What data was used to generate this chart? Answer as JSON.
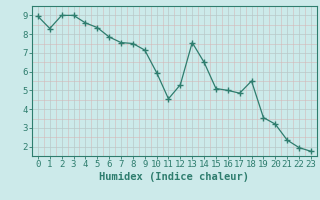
{
  "x": [
    0,
    1,
    2,
    3,
    4,
    5,
    6,
    7,
    8,
    9,
    10,
    11,
    12,
    13,
    14,
    15,
    16,
    17,
    18,
    19,
    20,
    21,
    22,
    23
  ],
  "y": [
    8.95,
    8.3,
    9.0,
    9.0,
    8.6,
    8.35,
    7.85,
    7.55,
    7.5,
    7.15,
    5.95,
    4.55,
    5.3,
    7.55,
    6.5,
    5.1,
    5.0,
    4.85,
    5.5,
    3.55,
    3.2,
    2.35,
    1.95,
    1.75
  ],
  "line_color": "#2e7d6e",
  "marker": "+",
  "marker_size": 4,
  "marker_lw": 1.0,
  "background_color": "#cceaea",
  "grid_color": "#b8c8c8",
  "grid_minor_color": "#d4b8b8",
  "xlabel": "Humidex (Indice chaleur)",
  "ylabel": "",
  "title": "",
  "xlim": [
    -0.5,
    23.5
  ],
  "ylim": [
    1.5,
    9.5
  ],
  "yticks": [
    2,
    3,
    4,
    5,
    6,
    7,
    8,
    9
  ],
  "xticks": [
    0,
    1,
    2,
    3,
    4,
    5,
    6,
    7,
    8,
    9,
    10,
    11,
    12,
    13,
    14,
    15,
    16,
    17,
    18,
    19,
    20,
    21,
    22,
    23
  ],
  "tick_color": "#2e7d6e",
  "label_color": "#2e7d6e",
  "font_size": 6.5,
  "xlabel_fontsize": 7.5
}
